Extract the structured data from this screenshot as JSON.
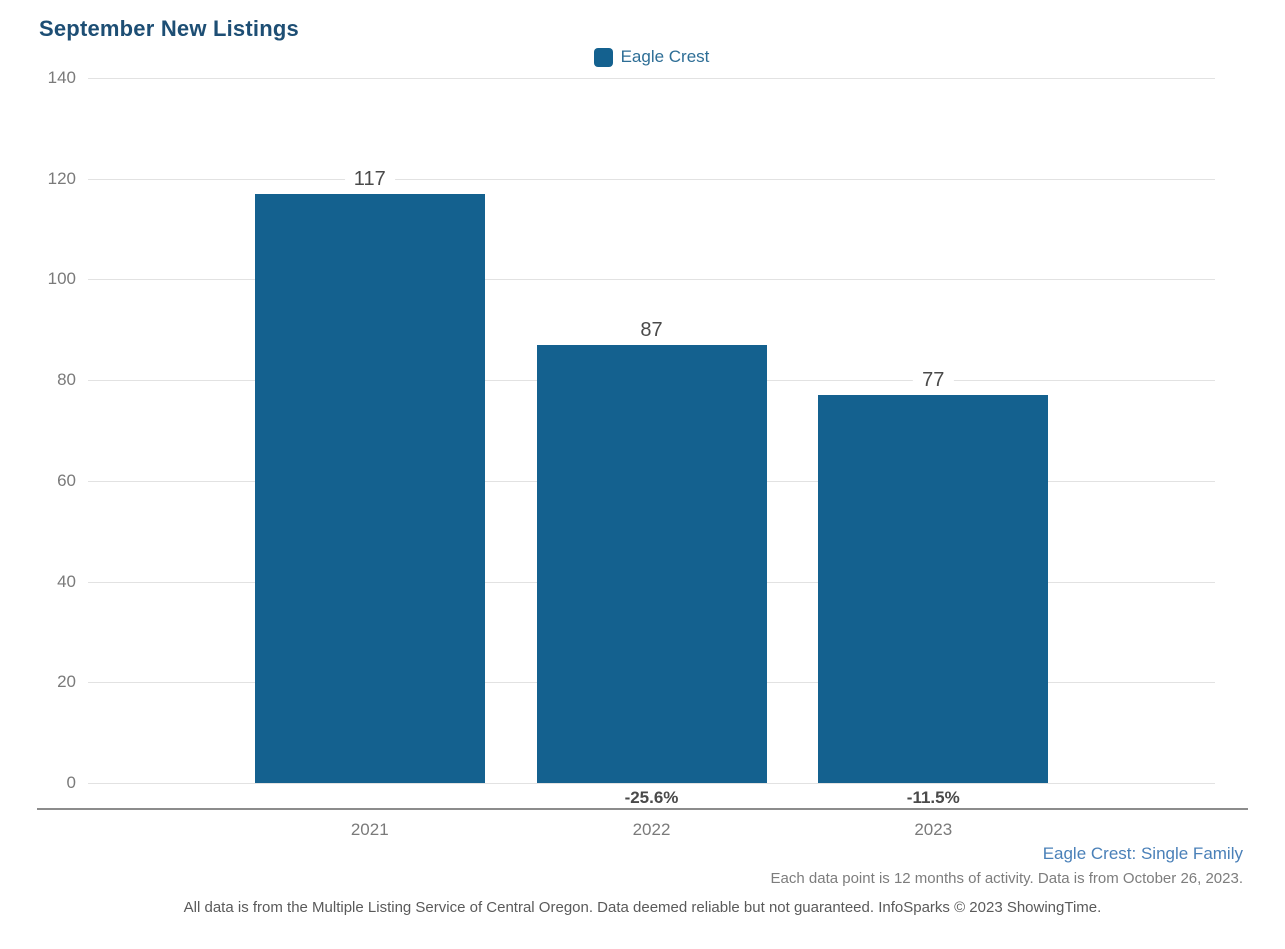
{
  "header": {
    "title": "September New Listings"
  },
  "legend": {
    "items": [
      {
        "label": "Eagle Crest",
        "color": "#14618f"
      }
    ]
  },
  "chart_data": {
    "type": "bar",
    "title": "September New Listings",
    "categories": [
      "2021",
      "2022",
      "2023"
    ],
    "series": [
      {
        "name": "Eagle Crest",
        "values": [
          117,
          87,
          77
        ],
        "color": "#14618f"
      }
    ],
    "value_labels": [
      "117",
      "87",
      "77"
    ],
    "pct_change_labels": [
      "",
      "-25.6%",
      "-11.5%"
    ],
    "ylim": [
      0,
      140
    ],
    "ytick_step": 20,
    "grid": true,
    "legend_position": "top-center",
    "xlabel": "",
    "ylabel": ""
  },
  "footer": {
    "series_caption": "Eagle Crest: Single Family",
    "data_note": "Each data point is 12 months of activity. Data is from October 26, 2023.",
    "disclaimer": "All data is from the Multiple Listing Service of Central Oregon. Data deemed reliable but not guaranteed. InfoSparks © 2023 ShowingTime."
  },
  "colors": {
    "bar": "#14618f",
    "title": "#1d4e74",
    "legend_text": "#2e6e96",
    "caption_blue": "#4a80b8",
    "gridline": "#e2e2e2",
    "axis_line": "#8c8c8c",
    "tick_text": "#7a7a7a",
    "value_text": "#4a4a4a"
  }
}
